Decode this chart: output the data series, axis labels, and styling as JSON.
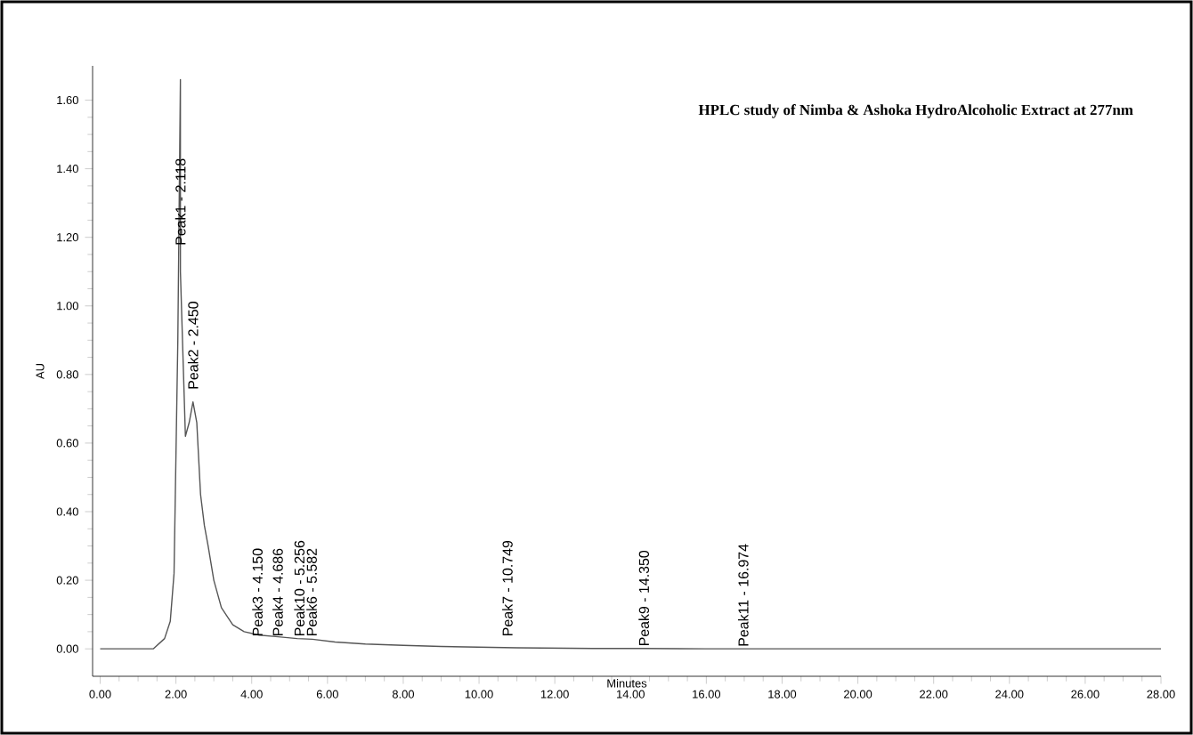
{
  "chart_data": {
    "type": "line",
    "title": "HPLC study of Nimba & Ashoka HydroAlcoholic Extract at 277nm",
    "xlabel": "Minutes",
    "ylabel": "AU",
    "x": [
      0.0,
      1.0,
      1.4,
      1.7,
      1.85,
      1.95,
      2.05,
      2.118,
      2.118,
      2.25,
      2.35,
      2.45,
      2.55,
      2.65,
      2.75,
      2.85,
      3.0,
      3.2,
      3.5,
      3.8,
      4.2,
      4.7,
      5.2,
      5.6,
      6.2,
      7.0,
      8.0,
      9.0,
      10.0,
      11.0,
      13.0,
      14.35,
      16.0,
      16.974,
      20.0,
      24.0,
      28.0
    ],
    "series": [
      {
        "color": "#555555",
        "values": [
          0.0,
          0.0,
          0.0,
          0.03,
          0.08,
          0.22,
          0.9,
          1.66,
          1.1,
          0.62,
          0.66,
          0.72,
          0.66,
          0.45,
          0.36,
          0.3,
          0.2,
          0.12,
          0.07,
          0.05,
          0.04,
          0.035,
          0.03,
          0.028,
          0.02,
          0.014,
          0.01,
          0.007,
          0.005,
          0.003,
          0.001,
          0.001,
          0.0,
          0.0,
          0.0,
          0.0,
          0.0
        ]
      }
    ],
    "xlim": [
      -0.2,
      28.0
    ],
    "ylim": [
      -0.08,
      1.7
    ],
    "xticks": [
      {
        "value": 0,
        "label": "0.00"
      },
      {
        "value": 2,
        "label": "2.00"
      },
      {
        "value": 4,
        "label": "4.00"
      },
      {
        "value": 6,
        "label": "6.00"
      },
      {
        "value": 8,
        "label": "8.00"
      },
      {
        "value": 10,
        "label": "10.00"
      },
      {
        "value": 12,
        "label": "12.00"
      },
      {
        "value": 14,
        "label": "14.00"
      },
      {
        "value": 16,
        "label": "16.00"
      },
      {
        "value": 18,
        "label": "18.00"
      },
      {
        "value": 20,
        "label": "20.00"
      },
      {
        "value": 22,
        "label": "22.00"
      },
      {
        "value": 24,
        "label": "24.00"
      },
      {
        "value": 26,
        "label": "26.00"
      },
      {
        "value": 28,
        "label": "28.00"
      }
    ],
    "yticks": [
      {
        "value": 0,
        "label": "0.00"
      },
      {
        "value": 0.2,
        "label": "0.20"
      },
      {
        "value": 0.4,
        "label": "0.40"
      },
      {
        "value": 0.6,
        "label": "0.60"
      },
      {
        "value": 0.8,
        "label": "0.80"
      },
      {
        "value": 1.0,
        "label": "1.00"
      },
      {
        "value": 1.2,
        "label": "1.20"
      },
      {
        "value": 1.4,
        "label": "1.40"
      },
      {
        "value": 1.6,
        "label": "1.60"
      }
    ],
    "grid": false,
    "annotations": [
      {
        "text": "Peak1 - 2.118",
        "x": 2.118,
        "y": 1.17
      },
      {
        "text": "Peak2 - 2.450",
        "x": 2.45,
        "y": 0.75
      },
      {
        "text": "Peak3 - 4.150",
        "x": 4.15,
        "y": 0.03
      },
      {
        "text": "Peak4 - 4.686",
        "x": 4.686,
        "y": 0.03
      },
      {
        "text": "Peak10 - 5.256",
        "x": 5.256,
        "y": 0.03
      },
      {
        "text": "Peak6 - 5.582",
        "x": 5.582,
        "y": 0.03
      },
      {
        "text": "Peak7 - 10.749",
        "x": 10.749,
        "y": 0.03
      },
      {
        "text": "Peak9 - 14.350",
        "x": 14.35,
        "y": 0.001
      },
      {
        "text": "Peak11 - 16.974",
        "x": 16.974,
        "y": 0.0
      }
    ]
  }
}
